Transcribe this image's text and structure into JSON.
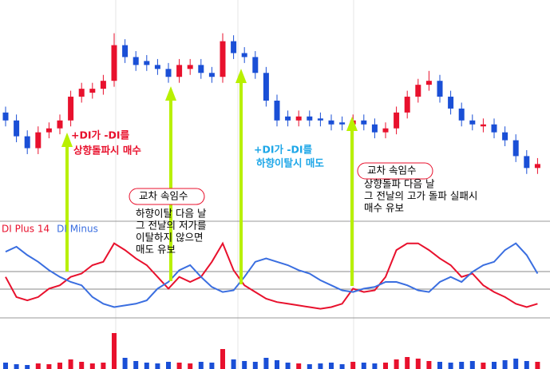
{
  "chart_data": [
    {
      "type": "candlestick",
      "up_color": "#e8112d",
      "down_color": "#1a4fd6",
      "ylim": [
        0,
        100
      ],
      "open": [
        44,
        40,
        32,
        26,
        34,
        36,
        40,
        52,
        54,
        56,
        60,
        78,
        72,
        70,
        68,
        66,
        62,
        66,
        68,
        64,
        62,
        80,
        74,
        72,
        64,
        50,
        42,
        40,
        42,
        41,
        40,
        39,
        38,
        40,
        38,
        34,
        36,
        44,
        52,
        58,
        60,
        52,
        46,
        40,
        37,
        38,
        34,
        30,
        22,
        16
      ],
      "high": [
        47,
        43,
        35,
        37,
        39,
        43,
        55,
        59,
        59,
        63,
        84,
        81,
        75,
        73,
        71,
        69,
        71,
        71,
        71,
        67,
        84,
        83,
        77,
        75,
        67,
        53,
        45,
        45,
        45,
        44,
        43,
        42,
        43,
        43,
        41,
        39,
        47,
        55,
        61,
        65,
        63,
        55,
        49,
        43,
        41,
        41,
        37,
        33,
        25,
        21
      ],
      "low": [
        37,
        29,
        23,
        23,
        31,
        33,
        37,
        49,
        51,
        53,
        57,
        69,
        65,
        65,
        63,
        59,
        59,
        63,
        61,
        59,
        59,
        71,
        69,
        61,
        47,
        37,
        37,
        37,
        37,
        37,
        35,
        35,
        35,
        35,
        31,
        31,
        33,
        41,
        49,
        55,
        49,
        43,
        37,
        35,
        34,
        31,
        27,
        19,
        13,
        13
      ],
      "close": [
        40,
        32,
        26,
        34,
        36,
        40,
        52,
        56,
        56,
        60,
        78,
        72,
        68,
        68,
        66,
        62,
        68,
        68,
        64,
        62,
        80,
        74,
        72,
        64,
        50,
        40,
        40,
        42,
        40,
        40,
        38,
        38,
        40,
        38,
        34,
        36,
        44,
        52,
        58,
        60,
        52,
        46,
        40,
        38,
        38,
        34,
        30,
        22,
        16,
        18
      ],
      "annotations": [
        {
          "color": "#e8112d",
          "lines": [
            "+DI가 -DI를",
            "상향돌파시 매수"
          ]
        },
        {
          "title": "교차 속임수",
          "lines": [
            "하향이탈 다음 날",
            "그 전날의 저가를",
            "이탈하지 않으면",
            "매도 유보"
          ]
        },
        {
          "color": "#1ea7e8",
          "lines": [
            "+DI가 -DI를",
            "하향이탈시 매도"
          ]
        },
        {
          "title": "교차 속임수",
          "lines": [
            "상향돌파 다음 날",
            "그 전날의 고가 돌파 실패시",
            "매수 유보"
          ]
        }
      ]
    },
    {
      "type": "line",
      "ylim": [
        0,
        50
      ],
      "series": [
        {
          "name": "DI Plus 14",
          "color": "#e8112d",
          "values": [
            23,
            11,
            9,
            11,
            16,
            18,
            23,
            25,
            30,
            32,
            43,
            39,
            34,
            30,
            23,
            16,
            23,
            20,
            23,
            32,
            43,
            27,
            18,
            14,
            10,
            8,
            7,
            6,
            5,
            4,
            5,
            7,
            16,
            14,
            15,
            23,
            39,
            43,
            43,
            39,
            34,
            30,
            23,
            25,
            18,
            14,
            11,
            7,
            5,
            7
          ]
        },
        {
          "name": "DI Minus",
          "color": "#3a6ee0",
          "values": [
            38,
            41,
            36,
            32,
            27,
            23,
            20,
            18,
            11,
            7,
            5,
            6,
            7,
            9,
            16,
            20,
            27,
            30,
            23,
            17,
            14,
            15,
            23,
            32,
            34,
            32,
            30,
            27,
            25,
            21,
            18,
            15,
            14,
            16,
            17,
            20,
            20,
            18,
            15,
            14,
            20,
            23,
            20,
            26,
            30,
            32,
            39,
            43,
            36,
            25
          ]
        }
      ]
    },
    {
      "type": "bar",
      "ylim": [
        0,
        60
      ],
      "values": [
        8,
        6,
        5,
        7,
        6,
        8,
        12,
        9,
        7,
        8,
        45,
        14,
        10,
        8,
        7,
        9,
        8,
        7,
        9,
        8,
        25,
        12,
        10,
        9,
        14,
        11,
        8,
        7,
        6,
        7,
        8,
        6,
        9,
        8,
        7,
        8,
        12,
        15,
        13,
        10,
        9,
        8,
        9,
        10,
        8,
        9,
        11,
        13,
        10,
        9
      ]
    }
  ]
}
